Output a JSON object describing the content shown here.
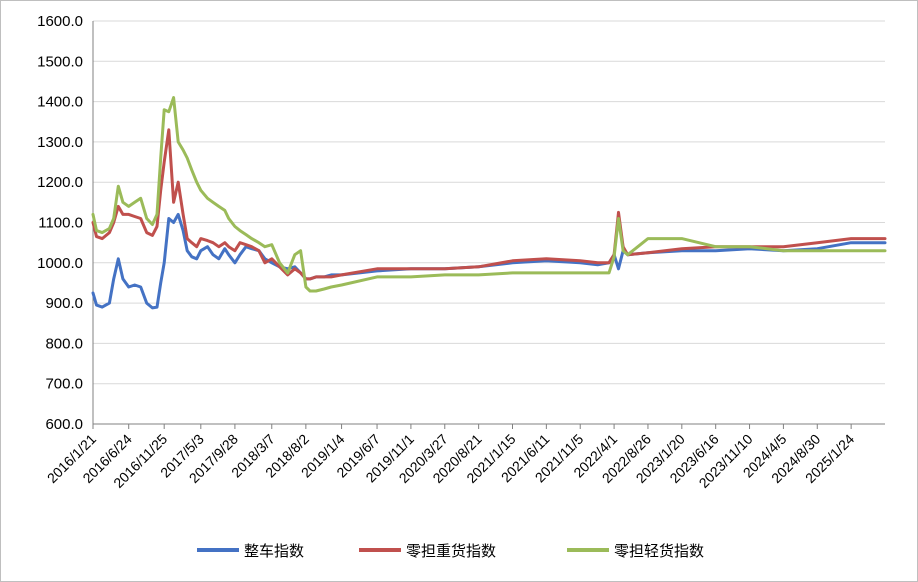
{
  "chart_data": {
    "type": "line",
    "title": "",
    "xlabel": "",
    "ylabel": "",
    "ylim": [
      600,
      1600
    ],
    "y_ticks": [
      "600.0",
      "700.0",
      "800.0",
      "900.0",
      "1000.0",
      "1100.0",
      "1200.0",
      "1300.0",
      "1400.0",
      "1500.0",
      "1600.0"
    ],
    "x_ticks": [
      "2016/1/21",
      "2016/6/24",
      "2016/11/25",
      "2017/5/3",
      "2017/9/28",
      "2018/3/7",
      "2018/8/2",
      "2019/1/4",
      "2019/6/7",
      "2019/11/1",
      "2020/3/27",
      "2020/8/21",
      "2021/1/15",
      "2021/6/11",
      "2021/11/5",
      "2022/4/1",
      "2022/8/26",
      "2023/1/20",
      "2023/6/16",
      "2023/11/10",
      "2024/4/5",
      "2024/8/30",
      "2025/1/24"
    ],
    "grid": "horizontal",
    "legend_position": "bottom",
    "series": [
      {
        "name": "整车指数",
        "color": "#4472c4",
        "x": [
          "2016/1/21",
          "2016/2/5",
          "2016/3/1",
          "2016/4/1",
          "2016/4/20",
          "2016/5/10",
          "2016/5/30",
          "2016/6/24",
          "2016/7/20",
          "2016/8/15",
          "2016/9/10",
          "2016/10/5",
          "2016/10/25",
          "2016/11/10",
          "2016/11/25",
          "2016/12/15",
          "2017/1/5",
          "2017/1/25",
          "2017/2/15",
          "2017/3/5",
          "2017/3/25",
          "2017/4/15",
          "2017/5/3",
          "2017/6/1",
          "2017/6/25",
          "2017/7/20",
          "2017/8/15",
          "2017/9/1",
          "2017/9/28",
          "2017/10/20",
          "2017/11/15",
          "2017/12/10",
          "2018/1/10",
          "2018/2/5",
          "2018/3/7",
          "2018/4/10",
          "2018/5/15",
          "2018/6/15",
          "2018/7/10",
          "2018/8/2",
          "2018/8/20",
          "2018/9/15",
          "2018/10/20",
          "2018/11/20",
          "2019/1/4",
          "2019/6/7",
          "2019/11/1",
          "2020/3/27",
          "2020/8/21",
          "2021/1/15",
          "2021/6/11",
          "2021/11/5",
          "2022/1/20",
          "2022/3/10",
          "2022/4/1",
          "2022/4/20",
          "2022/5/10",
          "2022/5/30",
          "2022/8/26",
          "2023/1/20",
          "2023/6/16",
          "2023/11/10",
          "2024/4/5",
          "2024/8/30",
          "2025/1/24",
          "2025/6/20"
        ],
        "values": [
          925,
          895,
          890,
          900,
          960,
          1010,
          960,
          940,
          945,
          940,
          900,
          888,
          890,
          950,
          1000,
          1110,
          1100,
          1120,
          1080,
          1030,
          1015,
          1010,
          1030,
          1040,
          1020,
          1010,
          1035,
          1020,
          1000,
          1020,
          1040,
          1035,
          1030,
          1010,
          1000,
          990,
          985,
          990,
          975,
          960,
          960,
          965,
          965,
          970,
          970,
          980,
          985,
          985,
          990,
          1000,
          1005,
          1000,
          995,
          1000,
          1020,
          985,
          1030,
          1020,
          1025,
          1030,
          1030,
          1035,
          1030,
          1035,
          1050,
          1050
        ]
      },
      {
        "name": "零担重货指数",
        "color": "#c0504d",
        "x": [
          "2016/1/21",
          "2016/2/5",
          "2016/3/1",
          "2016/4/1",
          "2016/4/20",
          "2016/5/10",
          "2016/5/30",
          "2016/6/24",
          "2016/7/20",
          "2016/8/15",
          "2016/9/10",
          "2016/10/5",
          "2016/10/25",
          "2016/11/10",
          "2016/11/25",
          "2016/12/15",
          "2017/1/5",
          "2017/1/25",
          "2017/2/15",
          "2017/3/5",
          "2017/3/25",
          "2017/4/15",
          "2017/5/3",
          "2017/6/1",
          "2017/6/25",
          "2017/7/20",
          "2017/8/15",
          "2017/9/1",
          "2017/9/28",
          "2017/10/20",
          "2017/11/15",
          "2017/12/10",
          "2018/1/10",
          "2018/2/5",
          "2018/3/7",
          "2018/4/10",
          "2018/5/15",
          "2018/6/15",
          "2018/7/10",
          "2018/8/2",
          "2018/8/20",
          "2018/9/15",
          "2018/10/20",
          "2018/11/20",
          "2019/1/4",
          "2019/6/7",
          "2019/11/1",
          "2020/3/27",
          "2020/8/21",
          "2021/1/15",
          "2021/6/11",
          "2021/11/5",
          "2022/1/20",
          "2022/3/10",
          "2022/4/1",
          "2022/4/20",
          "2022/5/10",
          "2022/5/30",
          "2022/8/26",
          "2023/1/20",
          "2023/6/16",
          "2023/11/10",
          "2024/4/5",
          "2024/8/30",
          "2025/1/24",
          "2025/6/20"
        ],
        "values": [
          1100,
          1065,
          1060,
          1075,
          1100,
          1140,
          1120,
          1120,
          1115,
          1110,
          1075,
          1068,
          1090,
          1180,
          1250,
          1330,
          1150,
          1200,
          1120,
          1060,
          1050,
          1040,
          1060,
          1055,
          1050,
          1040,
          1050,
          1040,
          1030,
          1050,
          1045,
          1040,
          1030,
          1000,
          1010,
          990,
          970,
          985,
          975,
          960,
          960,
          965,
          965,
          965,
          970,
          985,
          985,
          985,
          990,
          1005,
          1010,
          1005,
          1000,
          1000,
          1020,
          1125,
          1040,
          1020,
          1025,
          1035,
          1040,
          1040,
          1040,
          1050,
          1060,
          1060
        ]
      },
      {
        "name": "零担轻货指数",
        "color": "#9bbb59",
        "x": [
          "2016/1/21",
          "2016/2/5",
          "2016/3/1",
          "2016/4/1",
          "2016/4/20",
          "2016/5/10",
          "2016/5/30",
          "2016/6/24",
          "2016/7/20",
          "2016/8/15",
          "2016/9/10",
          "2016/10/5",
          "2016/10/25",
          "2016/11/10",
          "2016/11/25",
          "2016/12/15",
          "2017/1/5",
          "2017/1/25",
          "2017/2/15",
          "2017/3/5",
          "2017/3/25",
          "2017/4/15",
          "2017/5/3",
          "2017/6/1",
          "2017/6/25",
          "2017/7/20",
          "2017/8/15",
          "2017/9/1",
          "2017/9/28",
          "2017/10/20",
          "2017/11/15",
          "2017/12/10",
          "2018/1/10",
          "2018/2/5",
          "2018/3/7",
          "2018/4/10",
          "2018/5/15",
          "2018/6/15",
          "2018/7/10",
          "2018/8/2",
          "2018/8/20",
          "2018/9/15",
          "2018/10/20",
          "2018/11/20",
          "2019/1/4",
          "2019/6/7",
          "2019/11/1",
          "2020/3/27",
          "2020/8/21",
          "2021/1/15",
          "2021/6/11",
          "2021/11/5",
          "2022/1/20",
          "2022/3/10",
          "2022/4/1",
          "2022/4/20",
          "2022/5/10",
          "2022/5/30",
          "2022/8/26",
          "2023/1/20",
          "2023/6/16",
          "2023/11/10",
          "2024/4/5",
          "2024/8/30",
          "2025/1/24",
          "2025/6/20"
        ],
        "values": [
          1120,
          1080,
          1075,
          1085,
          1110,
          1190,
          1150,
          1140,
          1150,
          1160,
          1110,
          1095,
          1120,
          1260,
          1380,
          1375,
          1410,
          1300,
          1280,
          1260,
          1230,
          1200,
          1180,
          1160,
          1150,
          1140,
          1130,
          1110,
          1090,
          1080,
          1070,
          1060,
          1050,
          1040,
          1045,
          1000,
          975,
          1020,
          1030,
          940,
          930,
          930,
          935,
          940,
          945,
          965,
          965,
          970,
          970,
          975,
          975,
          975,
          975,
          975,
          1015,
          1110,
          1030,
          1020,
          1060,
          1060,
          1040,
          1040,
          1030,
          1030,
          1030,
          1030
        ]
      }
    ]
  }
}
